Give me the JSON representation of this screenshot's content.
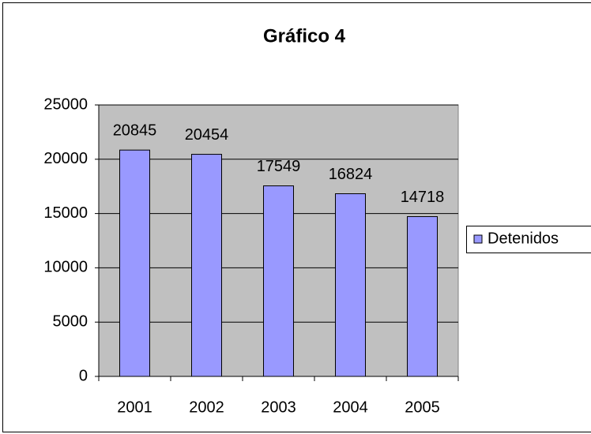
{
  "chart_data": {
    "type": "bar",
    "title": "Gráfico 4",
    "categories": [
      "2001",
      "2002",
      "2003",
      "2004",
      "2005"
    ],
    "series": [
      {
        "name": "Detenidos",
        "color": "#9999ff",
        "values": [
          20845,
          20454,
          17549,
          16824,
          14718
        ]
      }
    ],
    "ylim": [
      0,
      25000
    ],
    "yticks": [
      0,
      5000,
      10000,
      15000,
      20000,
      25000
    ],
    "grid": true,
    "legend": "right",
    "plot_background": "#c0c0c0"
  }
}
